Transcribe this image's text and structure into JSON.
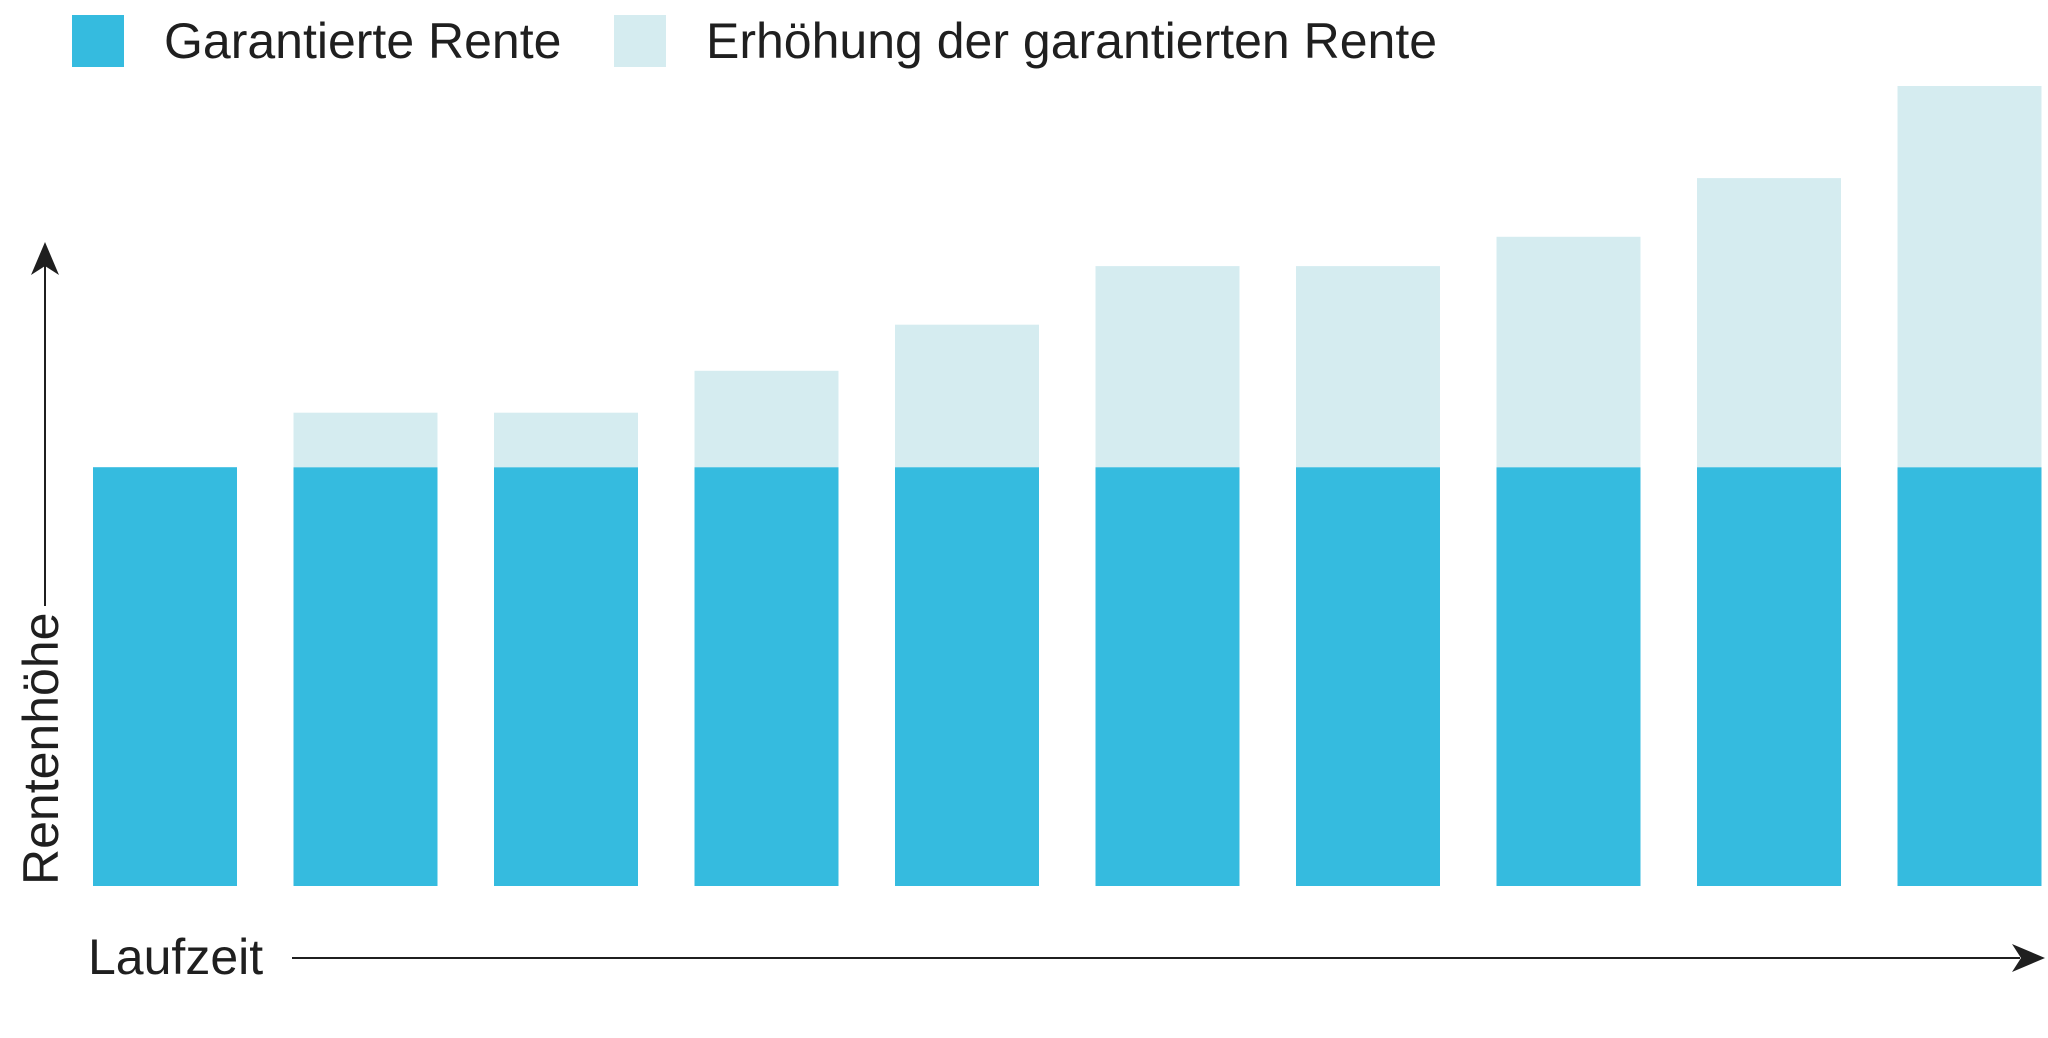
{
  "chart_data": {
    "type": "bar",
    "stacked": true,
    "categories": [
      "",
      "",
      "",
      "",
      "",
      "",
      "",
      "",
      "",
      ""
    ],
    "series": [
      {
        "name": "Garantierte Rente",
        "color": "#35bbdf",
        "values": [
          100,
          100,
          100,
          100,
          100,
          100,
          100,
          100,
          100,
          100
        ]
      },
      {
        "name": "Erhöhung der garantierten Rente",
        "color": "#d5ecf0",
        "values": [
          0,
          13,
          13,
          23,
          34,
          48,
          48,
          55,
          69,
          91
        ]
      }
    ],
    "xlabel": "Laufzeit",
    "ylabel": "Rentenhöhe",
    "ylim": [
      0,
      191
    ],
    "grid": false,
    "legend_position": "top-left",
    "axis_color": "#1f1f1f"
  }
}
